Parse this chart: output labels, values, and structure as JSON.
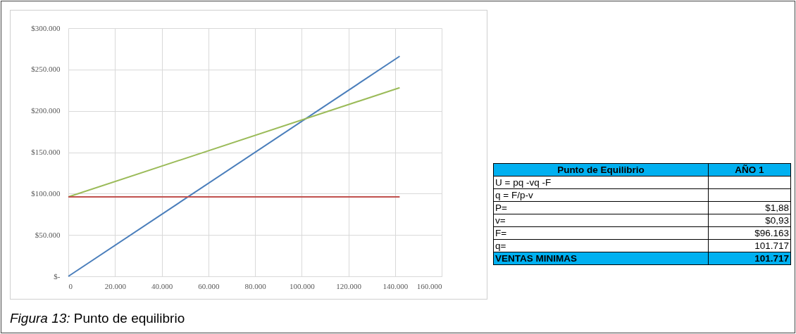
{
  "chart_data": [
    {
      "type": "line",
      "annotations": [
        "Figura 13: Punto de equilibrio"
      ],
      "xlim": [
        0,
        160000
      ],
      "xticks": [
        0,
        {
          "value": 20000,
          "label": "20.000"
        },
        {
          "value": 40000,
          "label": "40.000"
        },
        {
          "value": 60000,
          "label": "60.000"
        },
        {
          "value": 80000,
          "label": "80.000"
        },
        {
          "value": 100000,
          "label": "100.000"
        },
        {
          "value": 120000,
          "label": "120.000"
        },
        {
          "value": 140000,
          "label": "140.000"
        },
        {
          "value": 160000,
          "label": "160.000"
        }
      ],
      "ylim": [
        0,
        300000
      ],
      "yticks": [
        {
          "value": 0,
          "label": "$-"
        },
        {
          "value": 50000,
          "label": "$50.000"
        },
        {
          "value": 100000,
          "label": "$100.000"
        },
        {
          "value": 150000,
          "label": "$150.000"
        },
        {
          "value": 200000,
          "label": "$200.000"
        },
        {
          "value": 250000,
          "label": "$250.000"
        },
        {
          "value": 300000,
          "label": "$300.000"
        }
      ],
      "grid": true,
      "line_style": "solid",
      "x": [
        0,
        142000
      ],
      "series": [
        {
          "color": "#4a7ebb",
          "values": [
            0,
            266000
          ]
        },
        {
          "color": "#9bbb59",
          "values": [
            96000,
            228000
          ]
        },
        {
          "color": "#c0504d",
          "values": [
            96000,
            96000
          ]
        }
      ]
    },
    {
      "type": "other",
      "annotations": [
        "Punto de Equilibrio",
        "AÑO 1"
      ],
      "categories": [
        "U = pq -vq -F",
        "q = F/p-v",
        "P=",
        "v=",
        "F=",
        "q=",
        "VENTAS MINIMAS"
      ],
      "value_labels": [
        null,
        null,
        "$1,88",
        "$0,93",
        "$96.163",
        "101.717",
        "101.717"
      ]
    }
  ]
}
